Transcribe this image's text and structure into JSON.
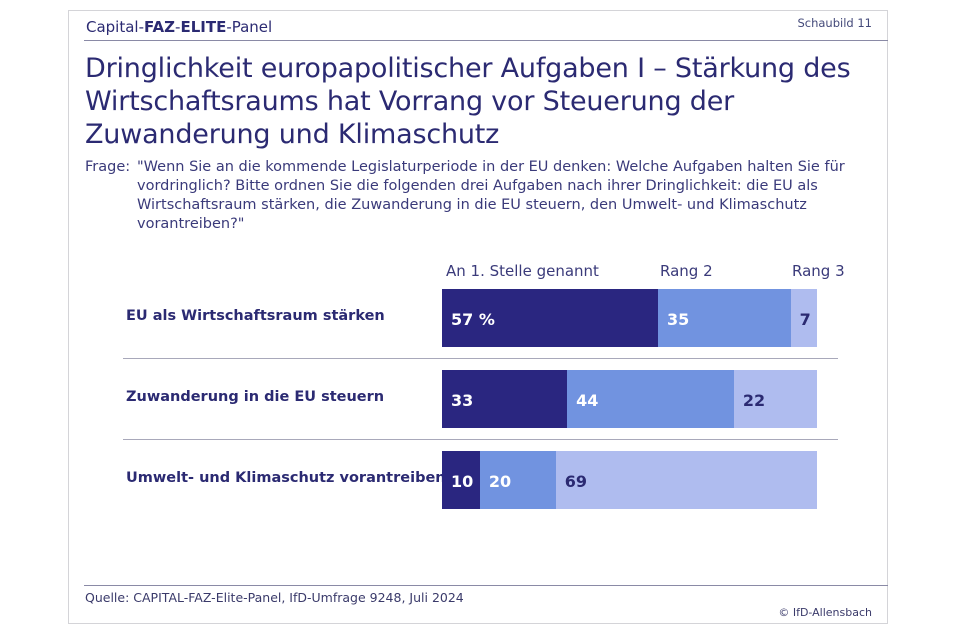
{
  "header": {
    "brand_prefix": "Capital-",
    "brand_bold1": "FAZ",
    "brand_sep": "-",
    "brand_bold2": "ELITE",
    "brand_suffix": "-Panel",
    "figure_label": "Schaubild 11"
  },
  "title": "Dringlichkeit europapolitischer Aufgaben I – Stärkung des Wirtschaftsraums hat Vorrang vor Steuerung der Zuwanderung und Klimaschutz",
  "question": {
    "label": "Frage:",
    "text": "\"Wenn Sie an die kommende Legislaturperiode in der EU denken: Welche Aufgaben halten Sie für vordringlich? Bitte ordnen Sie die folgenden drei Aufgaben nach ihrer Dringlichkeit: die EU als Wirtschaftsraum stärken, die Zuwanderung in die EU steuern, den Umwelt- und Klimaschutz vorantreiben?\""
  },
  "footer": {
    "source": "Quelle: CAPITAL-FAZ-Elite-Panel, IfD-Umfrage 9248, Juli 2024",
    "copyright": "© IfD-Allensbach"
  },
  "colors": {
    "rank1": "#2a2680",
    "rank2": "#7193e0",
    "rank3": "#afbcef",
    "text_dark": "#2b2a72",
    "text_light": "#ffffff"
  },
  "chart_data": {
    "type": "bar",
    "orientation": "horizontal",
    "stacked": true,
    "title": "Dringlichkeit europapolitischer Aufgaben I",
    "unit": "%",
    "categories": [
      "EU als Wirtschaftsraum stärken",
      "Zuwanderung in die EU steuern",
      "Umwelt- und Klimaschutz vorantreiben"
    ],
    "series": [
      {
        "name": "An 1. Stelle genannt",
        "values": [
          57,
          33,
          10
        ],
        "labels": [
          "57 %",
          "33",
          "10"
        ]
      },
      {
        "name": "Rang 2",
        "values": [
          35,
          44,
          20
        ],
        "labels": [
          "35",
          "44",
          "20"
        ]
      },
      {
        "name": "Rang 3",
        "values": [
          7,
          22,
          69
        ],
        "labels": [
          "7",
          "22",
          "69"
        ]
      }
    ],
    "xlim": [
      0,
      100
    ],
    "grid": false,
    "legend": "top"
  }
}
